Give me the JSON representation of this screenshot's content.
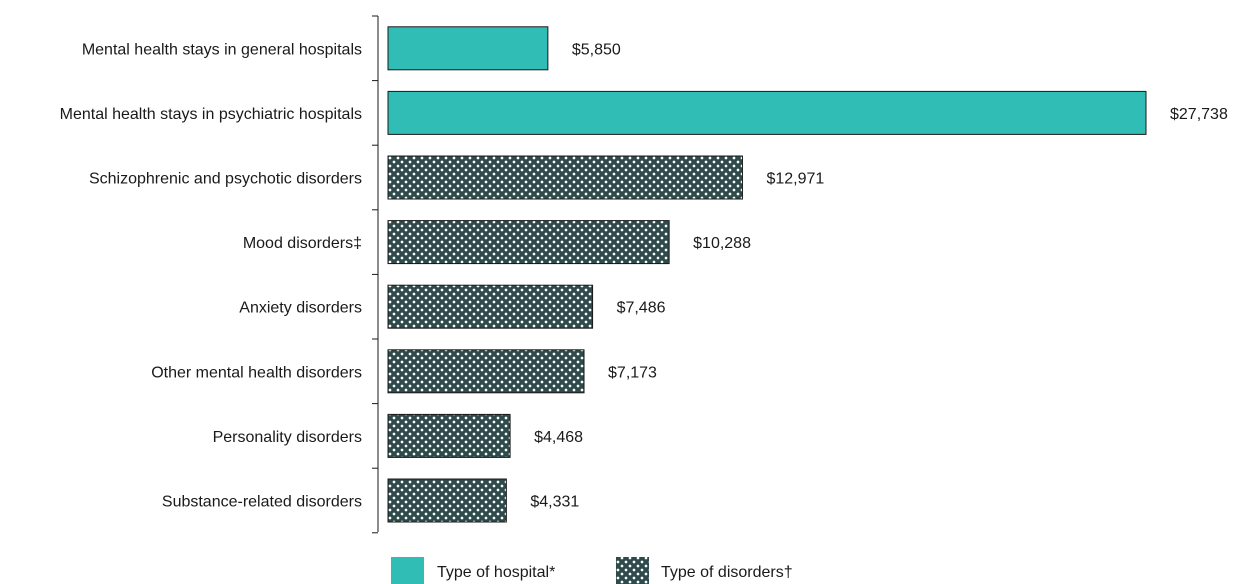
{
  "colors": {
    "hospital": "#2fbdb5",
    "disorders_fill": "#2e4a4a",
    "disorders_dot": "#ffffff",
    "axis": "#1a1a1a"
  },
  "legend": {
    "hospital_label": "Type of hospital*",
    "disorders_label": "Type of disorders†"
  },
  "chart_data": {
    "type": "bar",
    "orientation": "horizontal",
    "title": "",
    "xlabel": "",
    "ylabel": "",
    "xlim": [
      0,
      27738
    ],
    "grid": false,
    "legend_position": "bottom",
    "categories": [
      "Mental health stays in general hospitals",
      "Mental health stays in psychiatric hospitals",
      "Schizophrenic and psychotic disorders",
      "Mood disorders‡",
      "Anxiety disorders",
      "Other mental health disorders",
      "Personality disorders",
      "Substance-related disorders"
    ],
    "values": [
      5850,
      27738,
      12971,
      10288,
      7486,
      7173,
      4468,
      4331
    ],
    "value_labels": [
      "$5,850",
      "$27,738",
      "$12,971",
      "$10,288",
      "$7,486",
      "$7,173",
      "$4,468",
      "$4,331"
    ],
    "groups": [
      "hospital",
      "hospital",
      "disorders",
      "disorders",
      "disorders",
      "disorders",
      "disorders",
      "disorders"
    ]
  }
}
